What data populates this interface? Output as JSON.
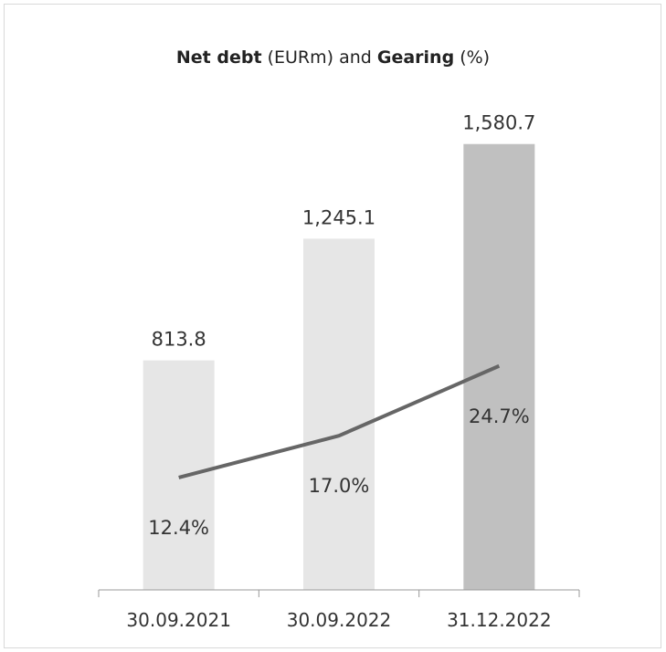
{
  "chart_data": {
    "type": "bar",
    "title_parts": [
      {
        "text": "Net debt",
        "bold": true
      },
      {
        "text": " (EURm) and ",
        "bold": false
      },
      {
        "text": "Gearing",
        "bold": true
      },
      {
        "text": " (%)",
        "bold": false
      }
    ],
    "categories": [
      "30.09.2021",
      "30.09.2022",
      "31.12.2022"
    ],
    "series": [
      {
        "name": "Net debt",
        "type": "bar",
        "values": [
          813.8,
          1245.1,
          1580.7
        ],
        "labels": [
          "813.8",
          "1,245.1",
          "1,580.7"
        ],
        "colors": [
          "#e6e6e6",
          "#e6e6e6",
          "#c0c0c0"
        ]
      },
      {
        "name": "Gearing",
        "type": "line",
        "values": [
          12.4,
          17.0,
          24.7
        ],
        "labels": [
          "12.4%",
          "17.0%",
          "24.7%"
        ],
        "color": "#666666"
      }
    ],
    "ylim_bars": [
      0,
      1800
    ],
    "ylim_line": [
      0,
      56
    ]
  }
}
